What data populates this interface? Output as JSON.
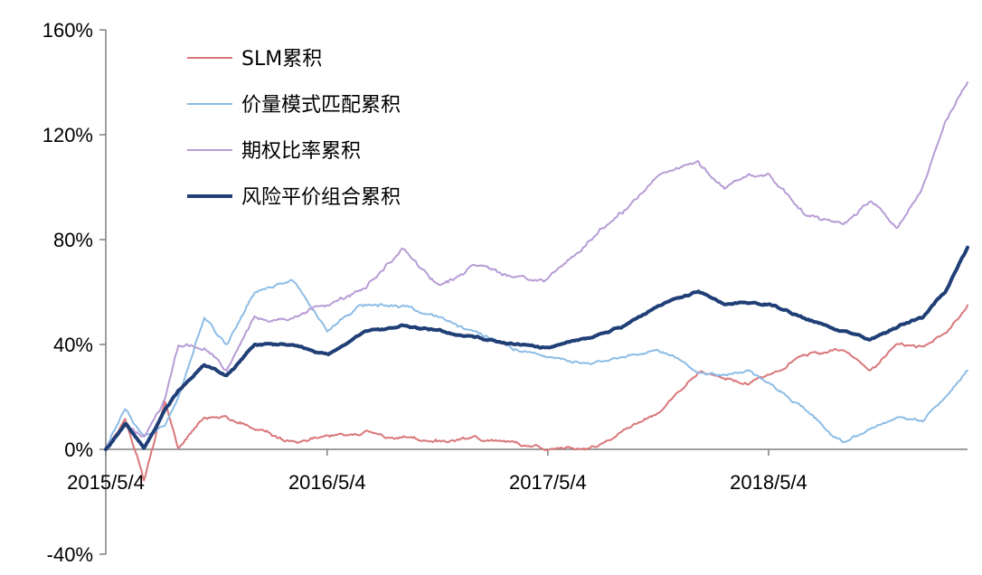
{
  "chart_data": {
    "type": "line",
    "title": "",
    "xlabel": "",
    "ylabel": "",
    "ylim": [
      -0.4,
      1.6
    ],
    "yticks": [
      -0.4,
      0,
      0.4,
      0.8,
      1.2,
      1.6
    ],
    "ytick_labels": [
      "-40%",
      "0%",
      "40%",
      "80%",
      "120%",
      "160%"
    ],
    "xlim": [
      "2015-05-04",
      "2019-03-29"
    ],
    "xticks": [
      "2015-05-04",
      "2016-05-04",
      "2017-05-04",
      "2018-05-04"
    ],
    "xtick_labels": [
      "2015/5/4",
      "2016/5/4",
      "2017/5/4",
      "2018/5/4"
    ],
    "grid": false,
    "legend_position": "top-left",
    "series": [
      {
        "name": "SLM累积",
        "color": "#d9777a",
        "line_width": 2,
        "dates": [
          "2015-05-04",
          "2015-06-05",
          "2015-07-06",
          "2015-08-10",
          "2015-09-01",
          "2015-10-14",
          "2015-11-20",
          "2016-01-05",
          "2016-03-07",
          "2016-05-04",
          "2016-07-05",
          "2016-09-05",
          "2016-11-04",
          "2017-01-04",
          "2017-03-06",
          "2017-05-04",
          "2017-07-05",
          "2017-09-05",
          "2017-11-03",
          "2018-01-08",
          "2018-02-20",
          "2018-04-02",
          "2018-05-04",
          "2018-07-05",
          "2018-09-05",
          "2018-10-19",
          "2018-12-03",
          "2019-01-14",
          "2019-02-20",
          "2019-03-29"
        ],
        "values": [
          0.0,
          0.12,
          -0.12,
          0.18,
          0.0,
          0.12,
          0.12,
          0.08,
          0.02,
          0.05,
          0.07,
          0.04,
          0.03,
          0.04,
          0.02,
          0.0,
          0.0,
          0.07,
          0.14,
          0.3,
          0.28,
          0.25,
          0.28,
          0.36,
          0.38,
          0.3,
          0.4,
          0.38,
          0.45,
          0.55
        ]
      },
      {
        "name": "价量模式匹配累积",
        "color": "#8dbde6",
        "line_width": 2,
        "dates": [
          "2015-05-04",
          "2015-06-05",
          "2015-07-06",
          "2015-08-10",
          "2015-09-01",
          "2015-10-14",
          "2015-11-20",
          "2016-01-05",
          "2016-03-07",
          "2016-05-04",
          "2016-07-05",
          "2016-09-05",
          "2016-11-04",
          "2017-01-04",
          "2017-03-06",
          "2017-05-04",
          "2017-07-05",
          "2017-09-05",
          "2017-11-03",
          "2018-01-08",
          "2018-02-20",
          "2018-04-02",
          "2018-05-04",
          "2018-07-05",
          "2018-09-05",
          "2018-10-19",
          "2018-12-03",
          "2019-01-14",
          "2019-02-20",
          "2019-03-29"
        ],
        "values": [
          0.0,
          0.15,
          0.05,
          0.1,
          0.2,
          0.5,
          0.4,
          0.6,
          0.65,
          0.45,
          0.55,
          0.55,
          0.5,
          0.45,
          0.38,
          0.35,
          0.33,
          0.35,
          0.38,
          0.3,
          0.28,
          0.3,
          0.25,
          0.15,
          0.02,
          0.08,
          0.12,
          0.1,
          0.2,
          0.3
        ]
      },
      {
        "name": "期权比率累积",
        "color": "#b79cd6",
        "line_width": 2,
        "dates": [
          "2015-05-04",
          "2015-06-05",
          "2015-07-06",
          "2015-08-10",
          "2015-09-01",
          "2015-10-14",
          "2015-11-20",
          "2016-01-05",
          "2016-03-07",
          "2016-05-04",
          "2016-07-05",
          "2016-09-05",
          "2016-11-04",
          "2017-01-04",
          "2017-03-06",
          "2017-05-04",
          "2017-07-05",
          "2017-09-05",
          "2017-11-03",
          "2018-01-08",
          "2018-02-20",
          "2018-04-02",
          "2018-05-04",
          "2018-07-05",
          "2018-09-05",
          "2018-10-19",
          "2018-12-03",
          "2019-01-14",
          "2019-02-20",
          "2019-03-29"
        ],
        "values": [
          0.0,
          0.1,
          0.05,
          0.2,
          0.4,
          0.38,
          0.3,
          0.5,
          0.5,
          0.55,
          0.62,
          0.75,
          0.62,
          0.7,
          0.65,
          0.65,
          0.78,
          0.9,
          1.05,
          1.1,
          1.0,
          1.05,
          1.05,
          0.9,
          0.85,
          0.95,
          0.85,
          1.0,
          1.25,
          1.4
        ]
      },
      {
        "name": "风险平价组合累积",
        "color": "#1f3f76",
        "line_width": 4,
        "dates": [
          "2015-05-04",
          "2015-06-05",
          "2015-07-06",
          "2015-08-10",
          "2015-09-01",
          "2015-10-14",
          "2015-11-20",
          "2016-01-05",
          "2016-03-07",
          "2016-05-04",
          "2016-07-05",
          "2016-09-05",
          "2016-11-04",
          "2017-01-04",
          "2017-03-06",
          "2017-05-04",
          "2017-07-05",
          "2017-09-05",
          "2017-11-03",
          "2018-01-08",
          "2018-02-20",
          "2018-04-02",
          "2018-05-04",
          "2018-07-05",
          "2018-09-05",
          "2018-10-19",
          "2018-12-03",
          "2019-01-14",
          "2019-02-20",
          "2019-03-29"
        ],
        "values": [
          0.0,
          0.1,
          0.0,
          0.15,
          0.22,
          0.32,
          0.28,
          0.4,
          0.4,
          0.36,
          0.45,
          0.47,
          0.45,
          0.43,
          0.4,
          0.39,
          0.42,
          0.47,
          0.55,
          0.6,
          0.55,
          0.56,
          0.55,
          0.5,
          0.45,
          0.42,
          0.47,
          0.5,
          0.6,
          0.77
        ]
      }
    ]
  }
}
